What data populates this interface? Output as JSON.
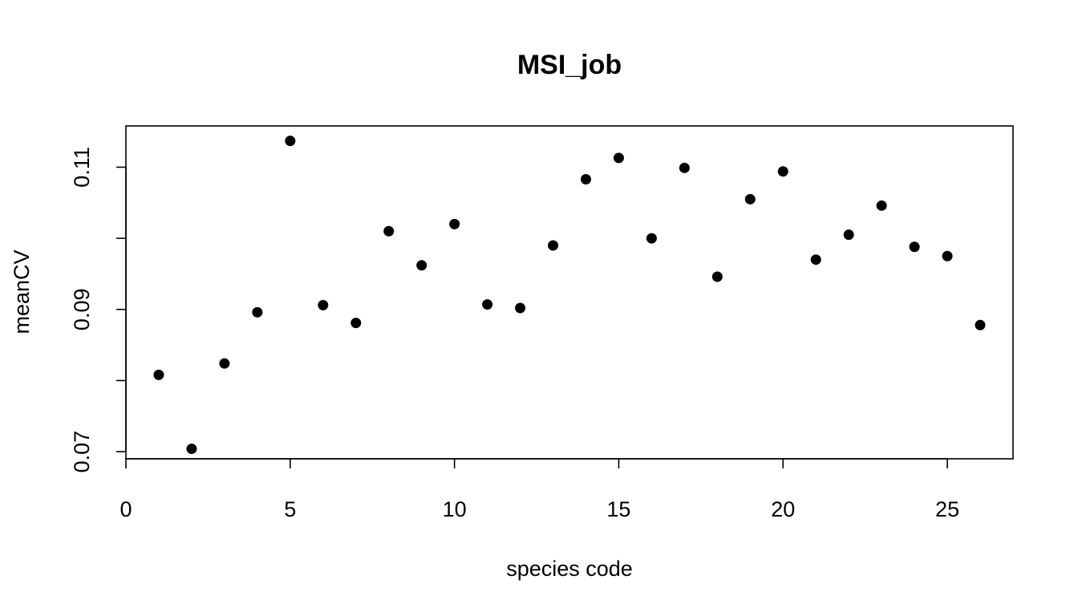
{
  "chart_data": {
    "type": "scatter",
    "title": "MSI_job",
    "xlabel": "species code",
    "ylabel": "meanCV",
    "xlim": [
      0,
      27
    ],
    "ylim": [
      0.069,
      0.1158
    ],
    "x_ticks": [
      0,
      5,
      10,
      15,
      20,
      25
    ],
    "x_tick_labels": [
      "0",
      "5",
      "10",
      "15",
      "20",
      "25"
    ],
    "y_ticks": [
      0.07,
      0.08,
      0.09,
      0.1,
      0.11
    ],
    "y_tick_labels": [
      "0.07",
      "",
      "0.09",
      "",
      "0.11"
    ],
    "grid": false,
    "legend": "none",
    "point_color": "#000000",
    "series": [
      {
        "x": [
          1,
          2,
          3,
          4,
          5,
          6,
          7,
          8,
          9,
          10,
          11,
          12,
          13,
          14,
          15,
          16,
          17,
          18,
          19,
          20,
          21,
          22,
          23,
          24,
          25,
          26
        ],
        "y": [
          0.0808,
          0.0704,
          0.0824,
          0.0896,
          0.1137,
          0.0906,
          0.0881,
          0.101,
          0.0962,
          0.102,
          0.0907,
          0.0902,
          0.099,
          0.1083,
          0.1113,
          0.1,
          0.1099,
          0.0946,
          0.1055,
          0.1094,
          0.097,
          0.1005,
          0.1046,
          0.0988,
          0.0975,
          0.0878
        ]
      }
    ]
  }
}
